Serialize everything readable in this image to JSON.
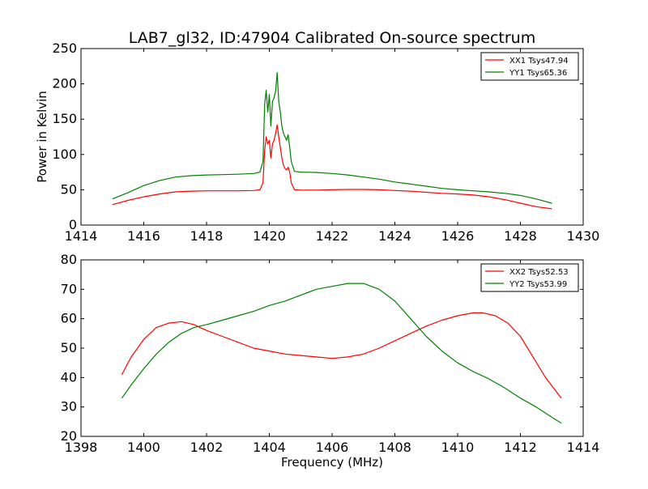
{
  "chart_data": [
    {
      "type": "line",
      "title": "LAB7_gl32, ID:47904 Calibrated On-source spectrum",
      "xlabel": "",
      "ylabel": "Power in Kelvin",
      "xlim": [
        1414,
        1430
      ],
      "ylim": [
        0,
        250
      ],
      "xticks": [
        1414,
        1416,
        1418,
        1420,
        1422,
        1424,
        1426,
        1428,
        1430
      ],
      "yticks": [
        0,
        50,
        100,
        150,
        200,
        250
      ],
      "grid": false,
      "legend_position": "top-right",
      "series": [
        {
          "name": "XX1 Tsys47.94",
          "color": "#ff0000",
          "x": [
            1415.0,
            1415.5,
            1416.0,
            1416.5,
            1417.0,
            1417.5,
            1418.0,
            1418.5,
            1419.0,
            1419.5,
            1419.7,
            1419.8,
            1419.85,
            1419.9,
            1419.95,
            1420.0,
            1420.05,
            1420.1,
            1420.15,
            1420.2,
            1420.25,
            1420.3,
            1420.35,
            1420.4,
            1420.45,
            1420.5,
            1420.55,
            1420.6,
            1420.65,
            1420.7,
            1420.8,
            1421.0,
            1421.5,
            1422.0,
            1422.5,
            1423.0,
            1423.5,
            1424.0,
            1424.5,
            1425.0,
            1425.5,
            1426.0,
            1426.5,
            1427.0,
            1427.5,
            1428.0,
            1428.5,
            1429.0
          ],
          "y": [
            29,
            35,
            40,
            44,
            47,
            48,
            48.5,
            48.5,
            48.5,
            49,
            50,
            60,
            105,
            125,
            115,
            120,
            95,
            115,
            120,
            130,
            142,
            125,
            110,
            95,
            85,
            80,
            78,
            82,
            75,
            60,
            50,
            49.5,
            49.5,
            50,
            50.5,
            50.5,
            50,
            49,
            48,
            46.5,
            45,
            44,
            42.5,
            40,
            36,
            31,
            26,
            23
          ]
        },
        {
          "name": "YY1 Tsys65.36",
          "color": "#008000",
          "x": [
            1415.0,
            1415.5,
            1416.0,
            1416.5,
            1417.0,
            1417.5,
            1418.0,
            1418.5,
            1419.0,
            1419.5,
            1419.7,
            1419.8,
            1419.85,
            1419.9,
            1419.95,
            1420.0,
            1420.05,
            1420.1,
            1420.15,
            1420.2,
            1420.25,
            1420.3,
            1420.35,
            1420.4,
            1420.45,
            1420.5,
            1420.55,
            1420.6,
            1420.65,
            1420.7,
            1420.8,
            1421.0,
            1421.5,
            1422.0,
            1422.5,
            1423.0,
            1423.5,
            1424.0,
            1424.5,
            1425.0,
            1425.5,
            1426.0,
            1426.5,
            1427.0,
            1427.5,
            1428.0,
            1428.5,
            1429.0
          ],
          "y": [
            37,
            46,
            56,
            63,
            68,
            70,
            71,
            71.5,
            72,
            73,
            75,
            90,
            170,
            191,
            160,
            185,
            140,
            175,
            180,
            190,
            216,
            175,
            160,
            140,
            130,
            125,
            120,
            128,
            110,
            90,
            76,
            75,
            74.5,
            73,
            71,
            68,
            65,
            61,
            58,
            55,
            52,
            50,
            48.5,
            47,
            45,
            42,
            37,
            31
          ]
        }
      ]
    },
    {
      "type": "line",
      "title": "",
      "xlabel": "Frequency (MHz)",
      "ylabel": "",
      "xlim": [
        1398,
        1414
      ],
      "ylim": [
        20,
        80
      ],
      "xticks": [
        1398,
        1400,
        1402,
        1404,
        1406,
        1408,
        1410,
        1412,
        1414
      ],
      "yticks": [
        20,
        30,
        40,
        50,
        60,
        70,
        80
      ],
      "grid": false,
      "legend_position": "top-right",
      "series": [
        {
          "name": "XX2 Tsys52.53",
          "color": "#ff0000",
          "x": [
            1399.3,
            1399.6,
            1400.0,
            1400.4,
            1400.8,
            1401.2,
            1401.6,
            1402.0,
            1402.5,
            1403.0,
            1403.5,
            1404.0,
            1404.5,
            1405.0,
            1405.5,
            1406.0,
            1406.5,
            1407.0,
            1407.5,
            1408.0,
            1408.5,
            1409.0,
            1409.5,
            1410.0,
            1410.5,
            1410.8,
            1411.2,
            1411.6,
            1412.0,
            1412.4,
            1412.8,
            1413.3
          ],
          "y": [
            41,
            47,
            53,
            57,
            58.5,
            59,
            58,
            56,
            54,
            52,
            50,
            49,
            48,
            47.5,
            47,
            46.5,
            47,
            48,
            50,
            52.5,
            55,
            57.5,
            59.5,
            61,
            62,
            62,
            61,
            58.5,
            54,
            47,
            40,
            33
          ]
        },
        {
          "name": "YY2 Tsys53.99",
          "color": "#008000",
          "x": [
            1399.3,
            1399.6,
            1400.0,
            1400.4,
            1400.8,
            1401.2,
            1401.6,
            1402.0,
            1402.5,
            1403.0,
            1403.5,
            1404.0,
            1404.5,
            1405.0,
            1405.5,
            1406.0,
            1406.5,
            1407.0,
            1407.5,
            1408.0,
            1408.5,
            1409.0,
            1409.5,
            1410.0,
            1410.5,
            1411.0,
            1411.5,
            1412.0,
            1412.5,
            1413.0,
            1413.3
          ],
          "y": [
            33,
            37.5,
            43,
            48,
            52,
            55,
            57,
            58,
            59.5,
            61,
            62.5,
            64.5,
            66,
            68,
            70,
            71,
            72,
            72,
            70,
            66,
            60,
            54,
            49,
            45,
            42,
            39.5,
            36.5,
            33,
            30,
            26.5,
            24.5
          ]
        }
      ]
    }
  ]
}
